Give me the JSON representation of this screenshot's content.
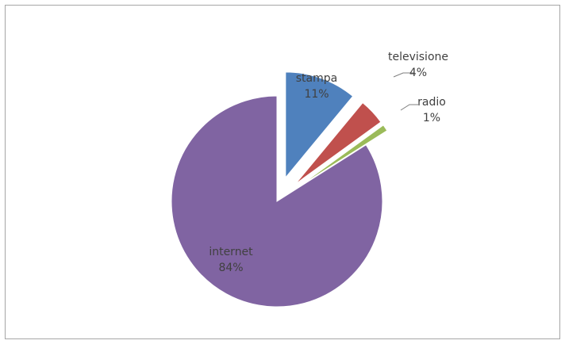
{
  "chart_data": {
    "type": "pie",
    "exploded": true,
    "slices": [
      {
        "label": "stampa",
        "value": 11,
        "value_label": "11%",
        "color": "#4f81bd"
      },
      {
        "label": "televisione",
        "value": 4,
        "value_label": "4%",
        "color": "#c0504d"
      },
      {
        "label": "radio",
        "value": 1,
        "value_label": "1%",
        "color": "#9bbb59"
      },
      {
        "label": "internet",
        "value": 84,
        "value_label": "84%",
        "color": "#8064a2"
      }
    ],
    "title": "",
    "legend": "none"
  }
}
